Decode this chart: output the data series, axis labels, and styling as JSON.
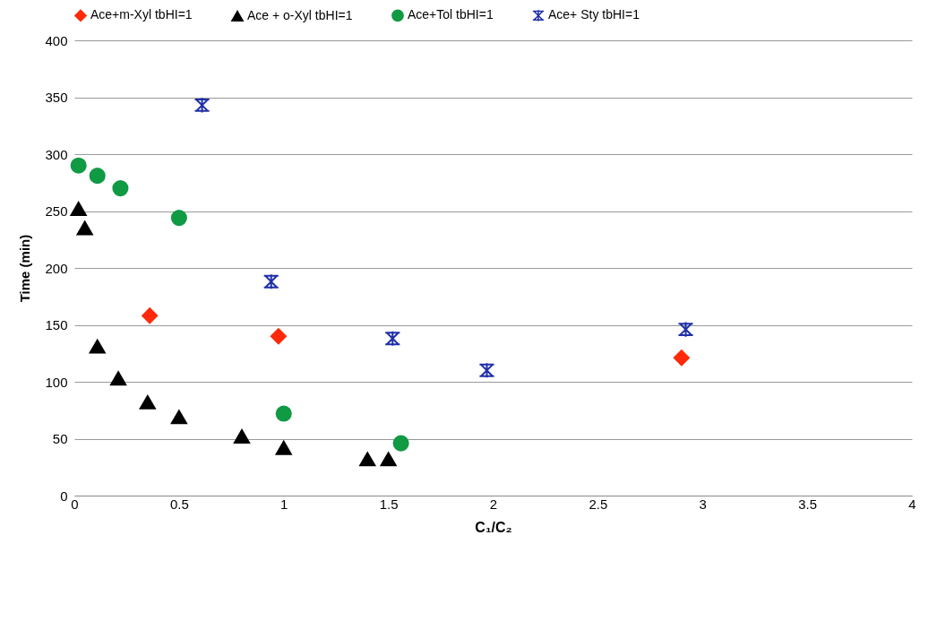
{
  "chart_data": {
    "type": "scatter",
    "xlabel": "C₁/C₂",
    "ylabel": "Time (min)",
    "xlim": [
      0,
      4
    ],
    "xticks": [
      0,
      0.5,
      1,
      1.5,
      2,
      2.5,
      3,
      3.5,
      4
    ],
    "ylim": [
      0,
      400
    ],
    "yticks": [
      0,
      50,
      100,
      150,
      200,
      250,
      300,
      350,
      400
    ],
    "grid": "y",
    "legend": "top",
    "series": [
      {
        "name": "Ace+m-Xyl tbHI=1",
        "color": "#ff2a0a",
        "marker": "diamond",
        "x": [
          0.36,
          0.975,
          2.9
        ],
        "values": [
          158,
          140,
          121
        ]
      },
      {
        "name": "Ace + o-Xyl tbHI=1",
        "color": "#000000",
        "marker": "triangle",
        "x": [
          0.02,
          0.05,
          0.11,
          0.21,
          0.35,
          0.5,
          0.8,
          1.0,
          1.4,
          1.5
        ],
        "values": [
          252,
          235,
          131,
          103,
          82,
          69,
          52,
          42,
          32,
          32
        ]
      },
      {
        "name": "Ace+Tol tbHI=1",
        "color": "#119a44",
        "marker": "circle",
        "x": [
          0.02,
          0.11,
          0.22,
          0.5,
          1.0,
          1.56
        ],
        "values": [
          290,
          281,
          270,
          244,
          72,
          46
        ]
      },
      {
        "name": "Ace+ Sty tbHI=1",
        "color": "#1f2fa8",
        "marker": "cross",
        "x": [
          0.61,
          0.94,
          1.52,
          1.97,
          2.92
        ],
        "values": [
          343,
          188,
          138,
          110,
          146
        ]
      }
    ]
  }
}
